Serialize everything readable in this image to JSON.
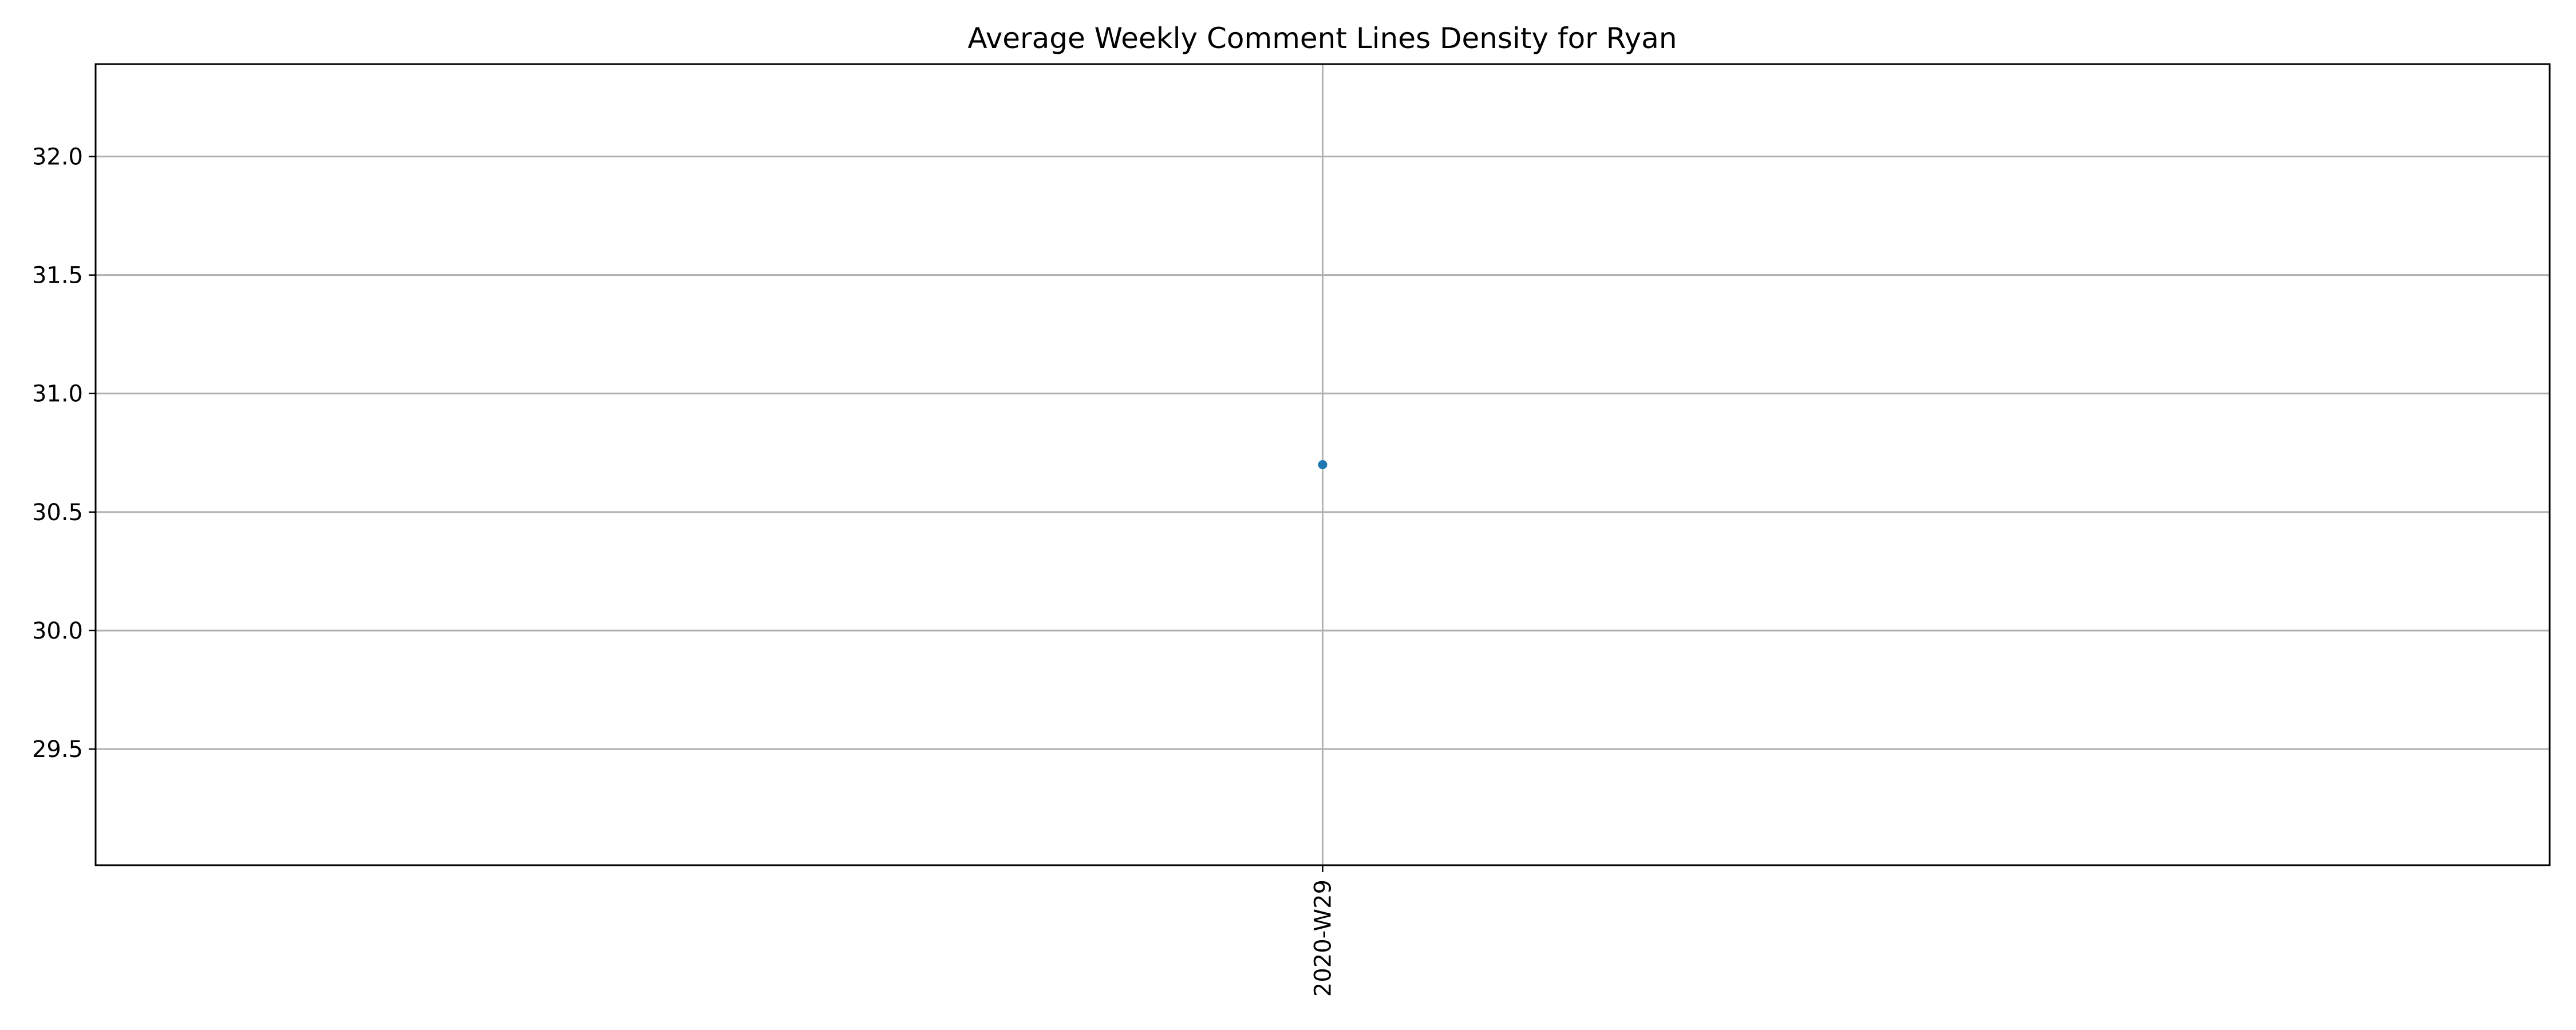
{
  "chart_data": {
    "type": "line",
    "title": "Average Weekly Comment Lines Density for Ryan",
    "xlabel": "",
    "ylabel": "",
    "categories": [
      "2020-W29"
    ],
    "series": [
      {
        "values": [
          30.7
        ],
        "color": "#1f77b4"
      }
    ],
    "ylim": [
      29.01,
      32.39
    ],
    "y_ticks": [
      29.5,
      30.0,
      30.5,
      31.0,
      31.5,
      32.0
    ],
    "y_tick_labels": [
      "29.5",
      "30.0",
      "30.5",
      "31.0",
      "31.5",
      "32.0"
    ],
    "grid": true,
    "x_tick_rotation": "vertical"
  }
}
